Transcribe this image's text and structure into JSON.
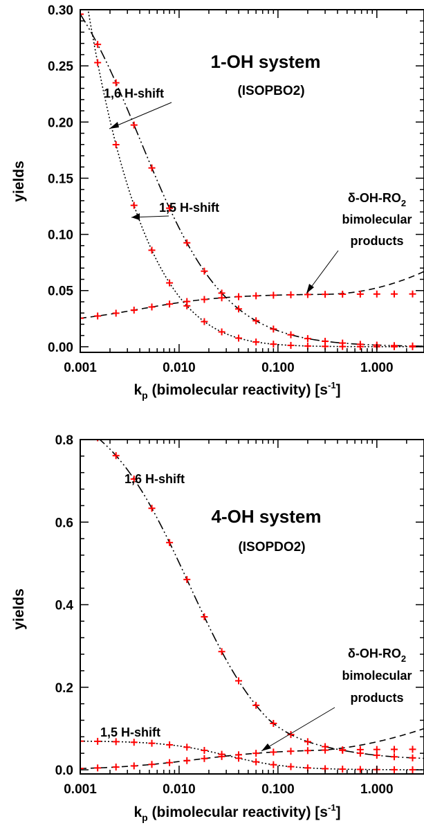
{
  "chart_data": [
    {
      "type": "line",
      "title": "1-OH system",
      "subtitle": "(ISOPBO2)",
      "xlabel_main": "k",
      "xlabel_sub": "p",
      "xlabel_rest": " (bimolecular reactivity)",
      "xunit": "[s",
      "xunit_sup": "-1",
      "xunit_end": "]",
      "ylabel": "yields",
      "x_scale": "log",
      "xlim": [
        0.001,
        3.0
      ],
      "ylim": [
        -0.005,
        0.3
      ],
      "xticks": [
        0.001,
        0.01,
        0.1,
        1.0
      ],
      "xtick_labels": [
        "0.001",
        "0.010",
        "0.100",
        "1.000"
      ],
      "yticks": [
        0.0,
        0.05,
        0.1,
        0.15,
        0.2,
        0.25,
        0.3
      ],
      "ytick_labels": [
        "0.00",
        "0.05",
        "0.10",
        "0.15",
        "0.20",
        "0.25",
        "0.30"
      ],
      "series": [
        {
          "style": "dash-dot-dot",
          "model": "hshift16",
          "A": 0.37,
          "k0": 0.004
        },
        {
          "style": "dotted",
          "model": "hshift15",
          "A": 0.37,
          "k0": 0.0033
        },
        {
          "style": "dashed",
          "model": "bimolecular",
          "base": 0.02,
          "plateau": 0.047,
          "k1": 0.004,
          "rise": 0.02
        }
      ],
      "markers": {
        "style": "red-plus",
        "x": [
          0.001,
          0.0015,
          0.0023,
          0.0035,
          0.0053,
          0.008,
          0.012,
          0.018,
          0.027,
          0.04,
          0.06,
          0.09,
          0.135,
          0.2,
          0.3,
          0.45,
          0.68,
          1.0,
          1.5,
          2.3
        ]
      },
      "annotations": [
        {
          "id": "h16",
          "text": "1,6 H-shift"
        },
        {
          "id": "h15",
          "text": "1,5 H-shift"
        },
        {
          "id": "bimo1",
          "text": "δ-OH-RO",
          "sub": "2"
        },
        {
          "id": "bimo2",
          "text": "bimolecular"
        },
        {
          "id": "bimo3",
          "text": "products"
        }
      ]
    },
    {
      "type": "line",
      "title": "4-OH system",
      "subtitle": "(ISOPDO2)",
      "xlabel_main": "k",
      "xlabel_sub": "p",
      "xlabel_rest": " (bimolecular reactivity)",
      "xunit": "[s",
      "xunit_sup": "-1",
      "xunit_end": "]",
      "ylabel": "yields",
      "x_scale": "log",
      "xlim": [
        0.001,
        3.0
      ],
      "ylim": [
        -0.01,
        0.8
      ],
      "xticks": [
        0.001,
        0.01,
        0.1,
        1.0
      ],
      "xtick_labels": [
        "0.001",
        "0.010",
        "0.100",
        "1.000"
      ],
      "yticks": [
        0.0,
        0.2,
        0.4,
        0.6,
        0.8
      ],
      "ytick_labels": [
        "0.0",
        "0.2",
        "0.4",
        "0.6",
        "0.8"
      ],
      "series": [
        {
          "style": "dash-dot-dot",
          "model": "h16_4oh",
          "A": 0.9,
          "k0": 0.0126,
          "floor": 0.04,
          "kf": 0.2
        },
        {
          "style": "dotted",
          "model": "h15_4oh",
          "A": 0.07,
          "k0": 0.03
        },
        {
          "style": "dashed",
          "model": "bimo_4oh",
          "kb": 0.015,
          "plateau": 0.05,
          "rise": 0.05
        }
      ],
      "markers": {
        "style": "red-plus",
        "x": [
          0.001,
          0.0015,
          0.0023,
          0.0035,
          0.0053,
          0.008,
          0.012,
          0.018,
          0.027,
          0.04,
          0.06,
          0.09,
          0.135,
          0.2,
          0.3,
          0.45,
          0.68,
          1.0,
          1.5,
          2.3
        ]
      },
      "annotations": [
        {
          "id": "h16",
          "text": "1,6 H-shift"
        },
        {
          "id": "h15",
          "text": "1,5 H-shift"
        },
        {
          "id": "bimo1",
          "text": "δ-OH-RO",
          "sub": "2"
        },
        {
          "id": "bimo2",
          "text": "bimolecular"
        },
        {
          "id": "bimo3",
          "text": "products"
        }
      ]
    }
  ]
}
